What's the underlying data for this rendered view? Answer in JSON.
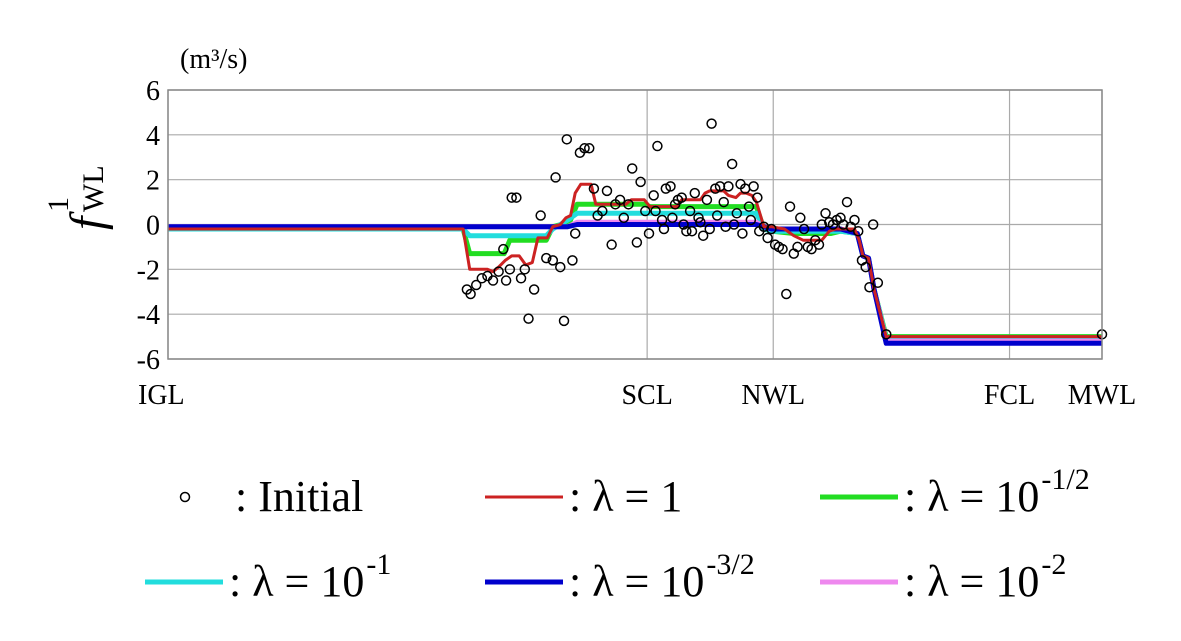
{
  "chart_data": {
    "type": "line",
    "unit_label": "(m³/s)",
    "ylabel": {
      "main": "f",
      "superscript": "1",
      "subscript": "WL"
    },
    "ylim": [
      -6,
      6
    ],
    "yticks": [
      6,
      4,
      2,
      0,
      -2,
      -4,
      -6
    ],
    "ytick_labels": [
      "6",
      "4",
      "2",
      "0",
      "-2",
      "-4",
      "-6"
    ],
    "xlim": [
      0,
      100
    ],
    "xticks": [
      {
        "x": 0,
        "label": "IGL"
      },
      {
        "x": 51.3,
        "label": "SCL"
      },
      {
        "x": 64.8,
        "label": "NWL"
      },
      {
        "x": 90.1,
        "label": "FCL"
      },
      {
        "x": 100,
        "label": "MWL"
      }
    ],
    "grid": true,
    "legend_position": "bottom",
    "series": [
      {
        "name": ": Initial",
        "kind": "scatter",
        "color": "#000000",
        "points": [
          [
            32,
            -2.9
          ],
          [
            32.4,
            -3.1
          ],
          [
            33,
            -2.7
          ],
          [
            33.6,
            -2.4
          ],
          [
            34.2,
            -2.3
          ],
          [
            34.8,
            -2.5
          ],
          [
            35.4,
            -2.1
          ],
          [
            35.9,
            -1.1
          ],
          [
            36.2,
            -2.5
          ],
          [
            36.6,
            -2.0
          ],
          [
            36.8,
            1.2
          ],
          [
            37.3,
            1.2
          ],
          [
            37.8,
            -2.4
          ],
          [
            38.2,
            -2.0
          ],
          [
            38.6,
            -4.2
          ],
          [
            39.2,
            -2.9
          ],
          [
            39.9,
            0.4
          ],
          [
            40.5,
            -1.5
          ],
          [
            41.2,
            -1.6
          ],
          [
            41.5,
            2.1
          ],
          [
            42.0,
            -1.9
          ],
          [
            42.4,
            -4.3
          ],
          [
            42.7,
            3.8
          ],
          [
            43.3,
            -1.6
          ],
          [
            43.6,
            -0.4
          ],
          [
            44.1,
            3.2
          ],
          [
            44.6,
            3.4
          ],
          [
            45.1,
            3.4
          ],
          [
            45.6,
            1.6
          ],
          [
            46.0,
            0.4
          ],
          [
            46.5,
            0.6
          ],
          [
            47.0,
            1.5
          ],
          [
            47.5,
            -0.9
          ],
          [
            47.9,
            0.9
          ],
          [
            48.4,
            1.1
          ],
          [
            48.8,
            0.3
          ],
          [
            49.3,
            0.9
          ],
          [
            49.7,
            2.5
          ],
          [
            50.2,
            -0.8
          ],
          [
            50.6,
            1.9
          ],
          [
            51.1,
            0.6
          ],
          [
            51.5,
            -0.4
          ],
          [
            52.0,
            1.3
          ],
          [
            52.4,
            3.5
          ],
          [
            52.9,
            0.2
          ],
          [
            53.3,
            1.6
          ],
          [
            53.8,
            1.7
          ],
          [
            54.3,
            0.9
          ],
          [
            54.6,
            1.1
          ],
          [
            55.0,
            1.2
          ],
          [
            55.5,
            -0.3
          ],
          [
            55.9,
            0.6
          ],
          [
            56.4,
            1.4
          ],
          [
            56.8,
            0.3
          ],
          [
            57.3,
            -0.5
          ],
          [
            57.7,
            1.1
          ],
          [
            58.2,
            4.5
          ],
          [
            58.6,
            1.6
          ],
          [
            59.1,
            1.7
          ],
          [
            59.5,
            1.0
          ],
          [
            60.0,
            1.7
          ],
          [
            60.4,
            2.7
          ],
          [
            60.9,
            0.5
          ],
          [
            61.3,
            1.8
          ],
          [
            61.8,
            1.6
          ],
          [
            62.2,
            0.8
          ],
          [
            62.7,
            1.7
          ],
          [
            63.1,
            1.2
          ],
          [
            52.2,
            0.6
          ],
          [
            53.1,
            -0.2
          ],
          [
            54.0,
            0.3
          ],
          [
            55.2,
            0.0
          ],
          [
            56.1,
            -0.3
          ],
          [
            57.0,
            0.1
          ],
          [
            58.0,
            -0.2
          ],
          [
            58.8,
            0.4
          ],
          [
            59.7,
            -0.1
          ],
          [
            60.6,
            0.0
          ],
          [
            61.5,
            -0.4
          ],
          [
            62.4,
            0.2
          ],
          [
            63.3,
            -0.3
          ],
          [
            63.8,
            -0.1
          ],
          [
            64.2,
            -0.6
          ],
          [
            64.6,
            -0.2
          ],
          [
            65.0,
            -0.9
          ],
          [
            65.4,
            -1.0
          ],
          [
            65.8,
            -1.1
          ],
          [
            66.2,
            -3.1
          ],
          [
            66.6,
            0.8
          ],
          [
            67.0,
            -1.3
          ],
          [
            67.4,
            -1.0
          ],
          [
            67.7,
            0.3
          ],
          [
            68.1,
            -0.2
          ],
          [
            68.5,
            -1.0
          ],
          [
            68.9,
            -1.1
          ],
          [
            69.3,
            -0.7
          ],
          [
            69.7,
            -0.9
          ],
          [
            70.0,
            0.0
          ],
          [
            70.4,
            0.5
          ],
          [
            70.8,
            0.1
          ],
          [
            71.2,
            0.0
          ],
          [
            71.6,
            0.2
          ],
          [
            72.0,
            0.3
          ],
          [
            72.3,
            0.0
          ],
          [
            72.7,
            1.0
          ],
          [
            73.1,
            -0.1
          ],
          [
            73.5,
            0.2
          ],
          [
            73.9,
            -0.3
          ],
          [
            74.3,
            -1.6
          ],
          [
            74.7,
            -1.9
          ],
          [
            75.1,
            -2.8
          ],
          [
            75.5,
            0.0
          ],
          [
            76.0,
            -2.6
          ],
          [
            76.9,
            -4.9
          ],
          [
            100.0,
            -4.9
          ]
        ]
      },
      {
        "name": ": λ = 10",
        "exponent": "-1/2",
        "kind": "line",
        "color": "#22dd22",
        "width": 5,
        "points": [
          [
            0,
            -0.2
          ],
          [
            31.6,
            -0.2
          ],
          [
            32.3,
            -1.3
          ],
          [
            36.0,
            -1.3
          ],
          [
            36.6,
            -0.7
          ],
          [
            40.5,
            -0.7
          ],
          [
            41.2,
            -0.1
          ],
          [
            43.0,
            0.1
          ],
          [
            43.8,
            0.9
          ],
          [
            51.0,
            0.9
          ],
          [
            51.6,
            0.8
          ],
          [
            63.0,
            0.8
          ],
          [
            63.8,
            -0.2
          ],
          [
            64.6,
            -0.3
          ],
          [
            67.0,
            -0.4
          ],
          [
            71.0,
            -0.4
          ],
          [
            72.0,
            -0.3
          ],
          [
            73.8,
            -0.4
          ],
          [
            74.4,
            -1.4
          ],
          [
            75.0,
            -1.5
          ],
          [
            75.6,
            -2.9
          ],
          [
            76.9,
            -5.0
          ],
          [
            100,
            -5.0
          ]
        ]
      },
      {
        "name": ": λ = 10",
        "exponent": "-1",
        "kind": "line",
        "color": "#22dddd",
        "width": 5,
        "points": [
          [
            0,
            -0.2
          ],
          [
            31.6,
            -0.2
          ],
          [
            32.3,
            -0.5
          ],
          [
            40.5,
            -0.5
          ],
          [
            41.2,
            -0.2
          ],
          [
            42.8,
            0.2
          ],
          [
            43.8,
            0.5
          ],
          [
            63.0,
            0.5
          ],
          [
            63.8,
            -0.2
          ],
          [
            64.6,
            -0.3
          ],
          [
            72.0,
            -0.3
          ],
          [
            73.8,
            -0.4
          ],
          [
            74.4,
            -1.4
          ],
          [
            75.0,
            -1.5
          ],
          [
            75.6,
            -2.9
          ],
          [
            76.9,
            -5.1
          ],
          [
            100,
            -5.1
          ]
        ]
      },
      {
        "name": ": λ = 10",
        "exponent": "-2",
        "kind": "line",
        "color": "#ee88ee",
        "width": 5,
        "points": [
          [
            0,
            -0.1
          ],
          [
            42.8,
            -0.1
          ],
          [
            43.8,
            0.1
          ],
          [
            63.0,
            0.1
          ],
          [
            63.8,
            -0.1
          ],
          [
            64.6,
            -0.2
          ],
          [
            72.0,
            -0.2
          ],
          [
            73.8,
            -0.4
          ],
          [
            74.4,
            -1.4
          ],
          [
            75.0,
            -1.5
          ],
          [
            75.6,
            -2.9
          ],
          [
            76.9,
            -5.2
          ],
          [
            100,
            -5.2
          ]
        ]
      },
      {
        "name": ": λ = 10",
        "exponent": "-3/2",
        "kind": "line",
        "color": "#0000cc",
        "width": 5,
        "points": [
          [
            0,
            -0.1
          ],
          [
            42.8,
            -0.1
          ],
          [
            43.8,
            0.0
          ],
          [
            63.0,
            0.0
          ],
          [
            63.8,
            -0.1
          ],
          [
            64.6,
            -0.2
          ],
          [
            72.0,
            -0.2
          ],
          [
            73.8,
            -0.4
          ],
          [
            74.4,
            -1.4
          ],
          [
            75.0,
            -1.5
          ],
          [
            75.6,
            -2.9
          ],
          [
            76.9,
            -5.3
          ],
          [
            100,
            -5.3
          ]
        ]
      },
      {
        "name": ": λ = 1",
        "kind": "line",
        "color": "#cc2222",
        "width": 3,
        "points": [
          [
            0,
            -0.2
          ],
          [
            31.6,
            -0.2
          ],
          [
            32.3,
            -2.0
          ],
          [
            34.2,
            -2.0
          ],
          [
            34.8,
            -2.1
          ],
          [
            35.4,
            -1.9
          ],
          [
            36.1,
            -1.6
          ],
          [
            36.8,
            -1.4
          ],
          [
            37.6,
            -1.4
          ],
          [
            38.3,
            -1.8
          ],
          [
            39.0,
            -1.7
          ],
          [
            39.6,
            -0.6
          ],
          [
            40.6,
            -0.6
          ],
          [
            41.2,
            -0.1
          ],
          [
            42.0,
            0.0
          ],
          [
            42.6,
            0.3
          ],
          [
            43.1,
            0.4
          ],
          [
            43.6,
            1.4
          ],
          [
            44.2,
            1.8
          ],
          [
            45.3,
            1.8
          ],
          [
            45.8,
            0.9
          ],
          [
            49.0,
            0.9
          ],
          [
            49.6,
            1.1
          ],
          [
            51.0,
            1.1
          ],
          [
            51.6,
            0.8
          ],
          [
            54.5,
            0.8
          ],
          [
            55.0,
            1.1
          ],
          [
            57.0,
            1.1
          ],
          [
            57.5,
            1.4
          ],
          [
            58.0,
            1.5
          ],
          [
            59.5,
            1.5
          ],
          [
            60.0,
            1.3
          ],
          [
            60.8,
            1.2
          ],
          [
            61.3,
            1.4
          ],
          [
            61.9,
            1.4
          ],
          [
            62.5,
            1.3
          ],
          [
            63.0,
            1.0
          ],
          [
            63.8,
            -0.1
          ],
          [
            64.6,
            -0.1
          ],
          [
            66.0,
            -0.2
          ],
          [
            67.0,
            -0.5
          ],
          [
            68.0,
            -0.7
          ],
          [
            70.0,
            -0.7
          ],
          [
            70.8,
            -0.3
          ],
          [
            71.5,
            -0.2
          ],
          [
            73.5,
            -0.2
          ],
          [
            74.0,
            -0.7
          ],
          [
            74.4,
            -1.4
          ],
          [
            75.0,
            -1.5
          ],
          [
            75.6,
            -2.9
          ],
          [
            76.9,
            -5.0
          ],
          [
            100,
            -5.0
          ]
        ]
      }
    ],
    "legend": [
      {
        "label": ": Initial",
        "marker": "circle",
        "color": "#000000"
      },
      {
        "label": ": λ = 1",
        "exponent": "",
        "marker": "line",
        "color": "#cc2222",
        "width": 3
      },
      {
        "label": ": λ = 10",
        "exponent": "-1/2",
        "marker": "line",
        "color": "#22dd22",
        "width": 5
      },
      {
        "label": ": λ = 10",
        "exponent": "-1",
        "marker": "line",
        "color": "#22dddd",
        "width": 5
      },
      {
        "label": ": λ = 10",
        "exponent": "-3/2",
        "marker": "line",
        "color": "#0000cc",
        "width": 5
      },
      {
        "label": ": λ = 10",
        "exponent": "-2",
        "marker": "line",
        "color": "#ee88ee",
        "width": 5
      }
    ]
  }
}
